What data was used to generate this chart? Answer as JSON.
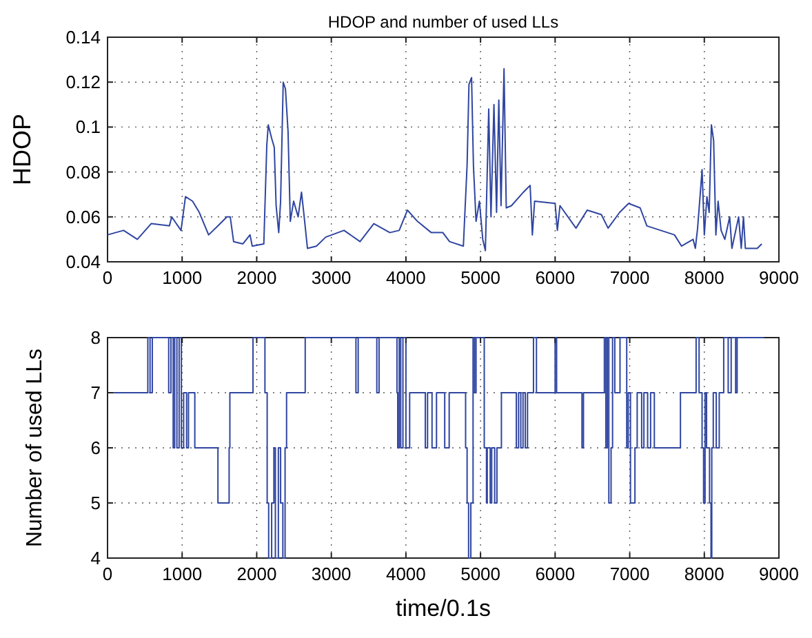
{
  "chart_data": [
    {
      "type": "line",
      "title": "HDOP and number of used LLs",
      "ylabel": "HDOP",
      "xlim": [
        0,
        9000
      ],
      "xticks": [
        0,
        1000,
        2000,
        3000,
        4000,
        5000,
        6000,
        7000,
        8000,
        9000
      ],
      "ylim": [
        0.04,
        0.14
      ],
      "yticks": [
        0.04,
        0.06,
        0.08,
        0.1,
        0.12,
        0.14
      ],
      "grid": true,
      "line_style": "solid",
      "series": [
        {
          "color": "#2f45a0",
          "x": [
            0,
            215,
            400,
            585,
            830,
            860,
            985,
            1045,
            1140,
            1230,
            1355,
            1480,
            1600,
            1645,
            1690,
            1815,
            1910,
            1940,
            2095,
            2135,
            2155,
            2200,
            2235,
            2260,
            2295,
            2320,
            2355,
            2385,
            2420,
            2450,
            2495,
            2555,
            2600,
            2630,
            2680,
            2800,
            2925,
            3170,
            3385,
            3570,
            3785,
            3910,
            4020,
            4155,
            4340,
            4495,
            4585,
            4770,
            4820,
            4845,
            4880,
            4905,
            4940,
            4985,
            5030,
            5065,
            5110,
            5140,
            5180,
            5215,
            5245,
            5275,
            5315,
            5345,
            5415,
            5575,
            5665,
            5695,
            5725,
            6000,
            6030,
            6065,
            6280,
            6430,
            6620,
            6710,
            6865,
            6985,
            7140,
            7230,
            7415,
            7600,
            7695,
            7850,
            7880,
            7910,
            7970,
            8000,
            8035,
            8065,
            8095,
            8125,
            8155,
            8185,
            8225,
            8275,
            8340,
            8370,
            8460,
            8495,
            8525,
            8550,
            8710,
            8770
          ],
          "values": [
            0.052,
            0.054,
            0.05,
            0.057,
            0.056,
            0.06,
            0.054,
            0.069,
            0.067,
            0.062,
            0.052,
            0.056,
            0.06,
            0.06,
            0.049,
            0.048,
            0.052,
            0.047,
            0.048,
            0.092,
            0.101,
            0.095,
            0.091,
            0.065,
            0.053,
            0.067,
            0.12,
            0.117,
            0.098,
            0.058,
            0.067,
            0.06,
            0.071,
            0.062,
            0.046,
            0.047,
            0.051,
            0.054,
            0.049,
            0.057,
            0.053,
            0.054,
            0.063,
            0.058,
            0.053,
            0.053,
            0.049,
            0.047,
            0.083,
            0.119,
            0.122,
            0.083,
            0.058,
            0.067,
            0.05,
            0.045,
            0.108,
            0.06,
            0.11,
            0.062,
            0.112,
            0.065,
            0.126,
            0.064,
            0.065,
            0.071,
            0.074,
            0.052,
            0.067,
            0.066,
            0.054,
            0.065,
            0.055,
            0.063,
            0.061,
            0.055,
            0.062,
            0.066,
            0.064,
            0.056,
            0.054,
            0.052,
            0.047,
            0.05,
            0.046,
            0.055,
            0.081,
            0.052,
            0.069,
            0.062,
            0.101,
            0.094,
            0.052,
            0.067,
            0.054,
            0.05,
            0.06,
            0.046,
            0.06,
            0.046,
            0.06,
            0.046,
            0.046,
            0.048
          ]
        }
      ]
    },
    {
      "type": "step",
      "xlabel": "time/0.1s",
      "ylabel": "Number of used LLs",
      "xlim": [
        0,
        9000
      ],
      "xticks": [
        0,
        1000,
        2000,
        3000,
        4000,
        5000,
        6000,
        7000,
        8000,
        9000
      ],
      "ylim": [
        4,
        8
      ],
      "yticks": [
        4,
        5,
        6,
        7,
        8
      ],
      "grid": true,
      "line_style": "solid",
      "series": [
        {
          "color": "#2f45a0",
          "x": [
            0,
            540,
            570,
            600,
            820,
            850,
            880,
            900,
            930,
            960,
            990,
            1020,
            1060,
            1085,
            1170,
            1480,
            1630,
            1640,
            1950,
            2110,
            2140,
            2160,
            2200,
            2230,
            2250,
            2290,
            2320,
            2350,
            2380,
            2400,
            2650,
            3330,
            3360,
            3610,
            3640,
            3880,
            3890,
            3910,
            3930,
            3960,
            4000,
            4050,
            4260,
            4290,
            4350,
            4410,
            4520,
            4580,
            4800,
            4820,
            4840,
            4870,
            4900,
            4920,
            4940,
            5050,
            5080,
            5090,
            5130,
            5150,
            5190,
            5220,
            5280,
            5480,
            5510,
            5540,
            5570,
            5600,
            5630,
            5710,
            5750,
            6000,
            6020,
            6360,
            6380,
            6660,
            6680,
            6700,
            6720,
            6750,
            6770,
            6800,
            6870,
            6960,
            6980,
            7010,
            7070,
            7100,
            7160,
            7190,
            7240,
            7280,
            7330,
            7680,
            7890,
            7930,
            7970,
            7990,
            8010,
            8030,
            8070,
            8090,
            8100,
            8120,
            8160,
            8200,
            8260,
            8320,
            8360,
            8420,
            8440,
            8800
          ],
          "values": [
            7,
            8,
            7,
            8,
            7,
            8,
            6,
            8,
            6,
            8,
            6,
            7,
            6,
            7,
            6,
            5,
            6,
            7,
            8,
            7,
            5,
            4,
            5,
            6,
            4,
            6,
            5,
            4,
            6,
            7,
            8,
            7,
            8,
            7,
            8,
            7,
            6,
            8,
            6,
            8,
            6,
            7,
            6,
            7,
            6,
            7,
            6,
            7,
            6,
            5,
            4,
            5,
            8,
            7,
            8,
            6,
            5,
            6,
            5,
            6,
            5,
            6,
            7,
            6,
            7,
            6,
            7,
            6,
            7,
            8,
            7,
            8,
            7,
            6,
            7,
            8,
            6,
            8,
            5,
            6,
            8,
            7,
            8,
            6,
            7,
            5,
            6,
            7,
            6,
            7,
            6,
            7,
            6,
            7,
            8,
            7,
            6,
            5,
            7,
            6,
            5,
            4,
            6,
            7,
            6,
            7,
            8,
            7,
            8,
            7,
            8,
            8
          ]
        }
      ]
    }
  ]
}
